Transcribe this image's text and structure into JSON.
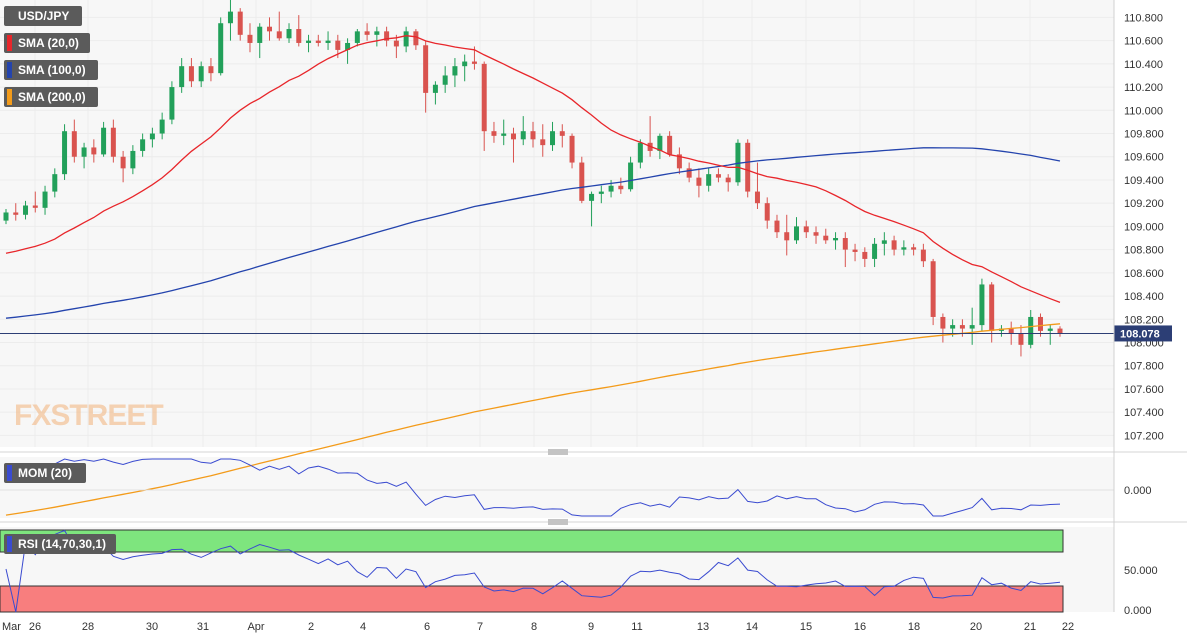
{
  "chart_data": {
    "type": "candlestick",
    "instrument": "USD/JPY",
    "watermark": "FXSTREET",
    "price_axis": {
      "range": [
        107.1,
        110.95
      ],
      "ticks": [
        "110.800",
        "110.600",
        "110.400",
        "110.200",
        "110.000",
        "109.800",
        "109.600",
        "109.400",
        "109.200",
        "109.000",
        "108.800",
        "108.600",
        "108.400",
        "108.200",
        "108.000",
        "107.800",
        "107.600",
        "107.400",
        "107.200"
      ],
      "tick_values": [
        110.8,
        110.6,
        110.4,
        110.2,
        110.0,
        109.8,
        109.6,
        109.4,
        109.2,
        109.0,
        108.8,
        108.6,
        108.4,
        108.2,
        108.0,
        107.8,
        107.6,
        107.4,
        107.2
      ]
    },
    "current_price": {
      "label": "108.078",
      "value": 108.078
    },
    "x_axis": {
      "labels": [
        "Mar",
        "26",
        "28",
        "30",
        "31",
        "Apr",
        "2",
        "4",
        "6",
        "7",
        "8",
        "9",
        "11",
        "13",
        "14",
        "15",
        "16",
        "18",
        "20",
        "21",
        "22"
      ]
    },
    "indicators": {
      "sma20": {
        "name": "SMA (20,0)",
        "color": "#e8262b"
      },
      "sma100": {
        "name": "SMA (100,0)",
        "color": "#2444ad"
      },
      "sma200": {
        "name": "SMA (200,0)",
        "color": "#f39b1a"
      },
      "mom": {
        "name": "MOM (20)",
        "color": "#3a4bd0",
        "ticks": [
          "0.000"
        ],
        "tick_values": [
          0
        ]
      },
      "rsi": {
        "name": "RSI (14,70,30,1)",
        "color": "#3a4bd0",
        "ticks": [
          "50.000",
          "0.000"
        ],
        "tick_values": [
          50,
          0
        ],
        "overbought": 70,
        "oversold": 30
      }
    },
    "candles_ohlc": [
      [
        109.05,
        109.15,
        109.02,
        109.12
      ],
      [
        109.12,
        109.2,
        109.05,
        109.1
      ],
      [
        109.1,
        109.22,
        109.06,
        109.18
      ],
      [
        109.18,
        109.3,
        109.12,
        109.16
      ],
      [
        109.16,
        109.35,
        109.1,
        109.3
      ],
      [
        109.3,
        109.5,
        109.25,
        109.45
      ],
      [
        109.45,
        109.88,
        109.4,
        109.82
      ],
      [
        109.82,
        109.92,
        109.55,
        109.6
      ],
      [
        109.6,
        109.72,
        109.5,
        109.68
      ],
      [
        109.68,
        109.75,
        109.55,
        109.62
      ],
      [
        109.62,
        109.9,
        109.6,
        109.85
      ],
      [
        109.85,
        109.92,
        109.55,
        109.6
      ],
      [
        109.6,
        109.65,
        109.38,
        109.5
      ],
      [
        109.5,
        109.7,
        109.45,
        109.65
      ],
      [
        109.65,
        109.8,
        109.6,
        109.75
      ],
      [
        109.75,
        109.85,
        109.68,
        109.8
      ],
      [
        109.8,
        109.98,
        109.75,
        109.92
      ],
      [
        109.92,
        110.25,
        109.88,
        110.2
      ],
      [
        110.2,
        110.45,
        110.15,
        110.38
      ],
      [
        110.38,
        110.45,
        110.2,
        110.25
      ],
      [
        110.25,
        110.42,
        110.2,
        110.38
      ],
      [
        110.38,
        110.45,
        110.25,
        110.32
      ],
      [
        110.32,
        110.8,
        110.3,
        110.75
      ],
      [
        110.75,
        110.95,
        110.6,
        110.85
      ],
      [
        110.85,
        110.88,
        110.6,
        110.65
      ],
      [
        110.65,
        110.75,
        110.5,
        110.58
      ],
      [
        110.58,
        110.75,
        110.45,
        110.72
      ],
      [
        110.72,
        110.8,
        110.6,
        110.68
      ],
      [
        110.68,
        110.85,
        110.6,
        110.62
      ],
      [
        110.62,
        110.75,
        110.58,
        110.7
      ],
      [
        110.7,
        110.82,
        110.55,
        110.58
      ],
      [
        110.58,
        110.65,
        110.5,
        110.6
      ],
      [
        110.6,
        110.65,
        110.55,
        110.58
      ],
      [
        110.58,
        110.68,
        110.52,
        110.6
      ],
      [
        110.6,
        110.65,
        110.45,
        110.52
      ],
      [
        110.52,
        110.62,
        110.4,
        110.58
      ],
      [
        110.58,
        110.7,
        110.55,
        110.68
      ],
      [
        110.68,
        110.75,
        110.6,
        110.65
      ],
      [
        110.65,
        110.72,
        110.55,
        110.68
      ],
      [
        110.68,
        110.72,
        110.55,
        110.6
      ],
      [
        110.6,
        110.65,
        110.45,
        110.55
      ],
      [
        110.55,
        110.72,
        110.5,
        110.68
      ],
      [
        110.68,
        110.7,
        110.52,
        110.56
      ],
      [
        110.56,
        110.6,
        109.98,
        110.15
      ],
      [
        110.15,
        110.25,
        110.05,
        110.22
      ],
      [
        110.22,
        110.38,
        110.15,
        110.3
      ],
      [
        110.3,
        110.45,
        110.2,
        110.38
      ],
      [
        110.38,
        110.48,
        110.25,
        110.42
      ],
      [
        110.42,
        110.55,
        110.35,
        110.4
      ],
      [
        110.4,
        110.42,
        109.65,
        109.82
      ],
      [
        109.82,
        109.9,
        109.72,
        109.78
      ],
      [
        109.78,
        109.92,
        109.7,
        109.8
      ],
      [
        109.8,
        109.85,
        109.55,
        109.75
      ],
      [
        109.75,
        109.95,
        109.7,
        109.82
      ],
      [
        109.82,
        109.9,
        109.68,
        109.75
      ],
      [
        109.75,
        109.88,
        109.6,
        109.7
      ],
      [
        109.7,
        109.9,
        109.65,
        109.82
      ],
      [
        109.82,
        109.88,
        109.68,
        109.78
      ],
      [
        109.78,
        109.8,
        109.5,
        109.55
      ],
      [
        109.55,
        109.6,
        109.2,
        109.22
      ],
      [
        109.22,
        109.3,
        109.0,
        109.28
      ],
      [
        109.28,
        109.35,
        109.2,
        109.3
      ],
      [
        109.3,
        109.4,
        109.25,
        109.35
      ],
      [
        109.35,
        109.42,
        109.28,
        109.32
      ],
      [
        109.32,
        109.6,
        109.3,
        109.55
      ],
      [
        109.55,
        109.75,
        109.5,
        109.72
      ],
      [
        109.72,
        109.95,
        109.6,
        109.65
      ],
      [
        109.65,
        109.8,
        109.58,
        109.78
      ],
      [
        109.78,
        109.82,
        109.6,
        109.62
      ],
      [
        109.62,
        109.68,
        109.45,
        109.5
      ],
      [
        109.5,
        109.55,
        109.38,
        109.42
      ],
      [
        109.42,
        109.5,
        109.25,
        109.35
      ],
      [
        109.35,
        109.5,
        109.3,
        109.45
      ],
      [
        109.45,
        109.5,
        109.38,
        109.42
      ],
      [
        109.42,
        109.45,
        109.3,
        109.38
      ],
      [
        109.38,
        109.75,
        109.35,
        109.72
      ],
      [
        109.72,
        109.75,
        109.25,
        109.3
      ],
      [
        109.3,
        109.55,
        109.15,
        109.2
      ],
      [
        109.2,
        109.25,
        108.98,
        109.05
      ],
      [
        109.05,
        109.1,
        108.9,
        108.95
      ],
      [
        108.95,
        109.1,
        108.75,
        108.88
      ],
      [
        108.88,
        109.08,
        108.85,
        109.0
      ],
      [
        109.0,
        109.05,
        108.9,
        108.95
      ],
      [
        108.95,
        109.0,
        108.85,
        108.92
      ],
      [
        108.92,
        108.98,
        108.85,
        108.88
      ],
      [
        108.88,
        108.95,
        108.8,
        108.9
      ],
      [
        108.9,
        108.95,
        108.65,
        108.8
      ],
      [
        108.8,
        108.85,
        108.7,
        108.78
      ],
      [
        108.78,
        108.82,
        108.65,
        108.72
      ],
      [
        108.72,
        108.9,
        108.65,
        108.85
      ],
      [
        108.85,
        108.95,
        108.75,
        108.88
      ],
      [
        108.88,
        108.92,
        108.75,
        108.8
      ],
      [
        108.8,
        108.88,
        108.75,
        108.82
      ],
      [
        108.82,
        108.85,
        108.75,
        108.8
      ],
      [
        108.8,
        108.85,
        108.65,
        108.7
      ],
      [
        108.7,
        108.72,
        108.15,
        108.22
      ],
      [
        108.22,
        108.25,
        108.0,
        108.12
      ],
      [
        108.12,
        108.2,
        108.05,
        108.15
      ],
      [
        108.15,
        108.2,
        108.05,
        108.12
      ],
      [
        108.12,
        108.3,
        107.98,
        108.15
      ],
      [
        108.15,
        108.55,
        108.1,
        108.5
      ],
      [
        108.5,
        108.52,
        108.0,
        108.1
      ],
      [
        108.1,
        108.15,
        108.05,
        108.12
      ],
      [
        108.12,
        108.18,
        107.98,
        108.08
      ],
      [
        108.08,
        108.15,
        107.88,
        107.98
      ],
      [
        107.98,
        108.28,
        107.95,
        108.22
      ],
      [
        108.22,
        108.25,
        108.05,
        108.1
      ],
      [
        108.1,
        108.15,
        107.98,
        108.12
      ],
      [
        108.12,
        108.14,
        108.05,
        108.08
      ]
    ]
  }
}
